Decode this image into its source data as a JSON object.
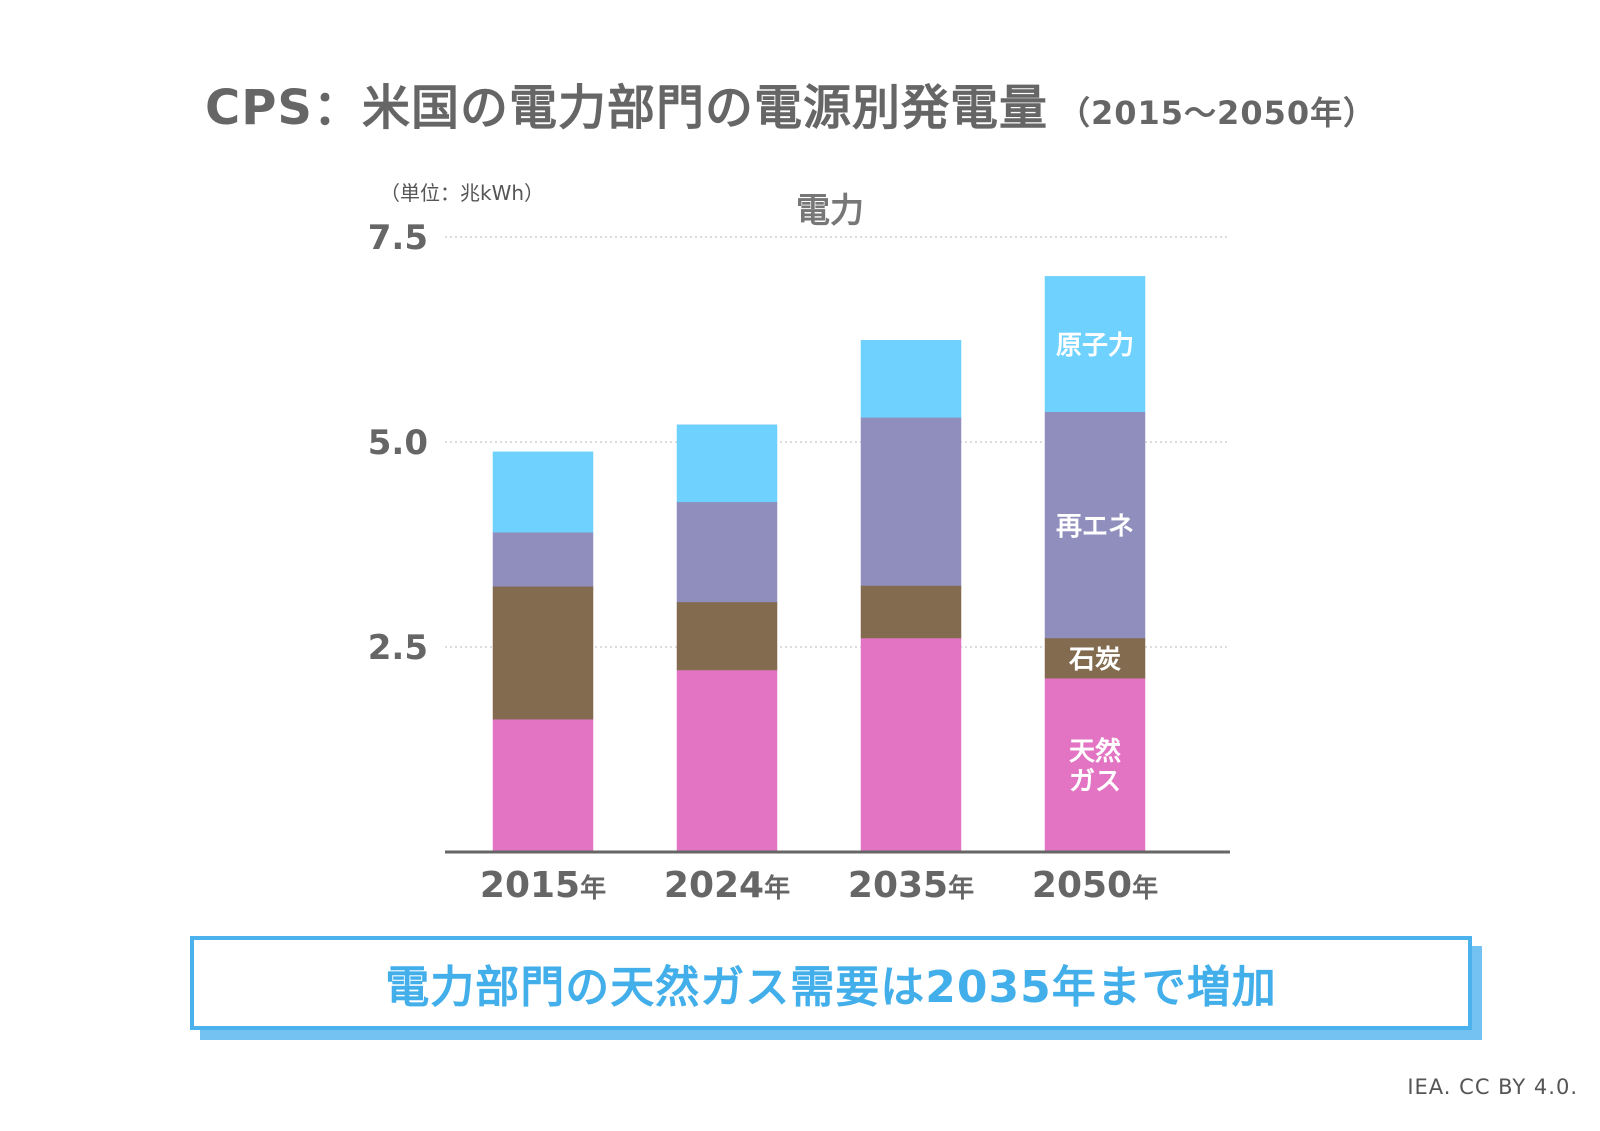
{
  "header": {
    "title": "CPS：米国の電力部門の電源別発電量",
    "range": "（2015〜2050年）"
  },
  "chart_data": {
    "type": "bar",
    "stacked": true,
    "title": "電力",
    "unit_label": "（単位：兆kWh）",
    "categories": [
      "2015年",
      "2024年",
      "2035年",
      "2050年"
    ],
    "category_parts": [
      {
        "num": "2015",
        "suffix": "年"
      },
      {
        "num": "2024",
        "suffix": "年"
      },
      {
        "num": "2035",
        "suffix": "年"
      },
      {
        "num": "2050",
        "suffix": "年"
      }
    ],
    "yticks": [
      "2.5",
      "5.0",
      "7.5"
    ],
    "ytick_values": [
      2.5,
      5.0,
      7.5
    ],
    "ylim": [
      0,
      7.5
    ],
    "grid": true,
    "series": [
      {
        "name": "天然ガス",
        "label_lines": [
          "天然",
          "ガス"
        ],
        "color": "#e274c3",
        "values": [
          1.62,
          2.22,
          2.61,
          2.12
        ]
      },
      {
        "name": "石炭",
        "label_lines": [
          "石炭"
        ],
        "color": "#826b4e",
        "values": [
          1.62,
          0.83,
          0.64,
          0.49
        ]
      },
      {
        "name": "再エネ",
        "label_lines": [
          "再エネ"
        ],
        "color": "#8f8ebd",
        "values": [
          0.66,
          1.22,
          2.05,
          2.76
        ]
      },
      {
        "name": "原子力",
        "label_lines": [
          "原子力"
        ],
        "color": "#6fd1fd",
        "values": [
          0.98,
          0.94,
          0.94,
          1.65
        ]
      }
    ],
    "label_column_index": 3
  },
  "callout": {
    "text": "電力部門の天然ガス需要は2035年まで増加"
  },
  "credit": "IEA. CC BY 4.0."
}
